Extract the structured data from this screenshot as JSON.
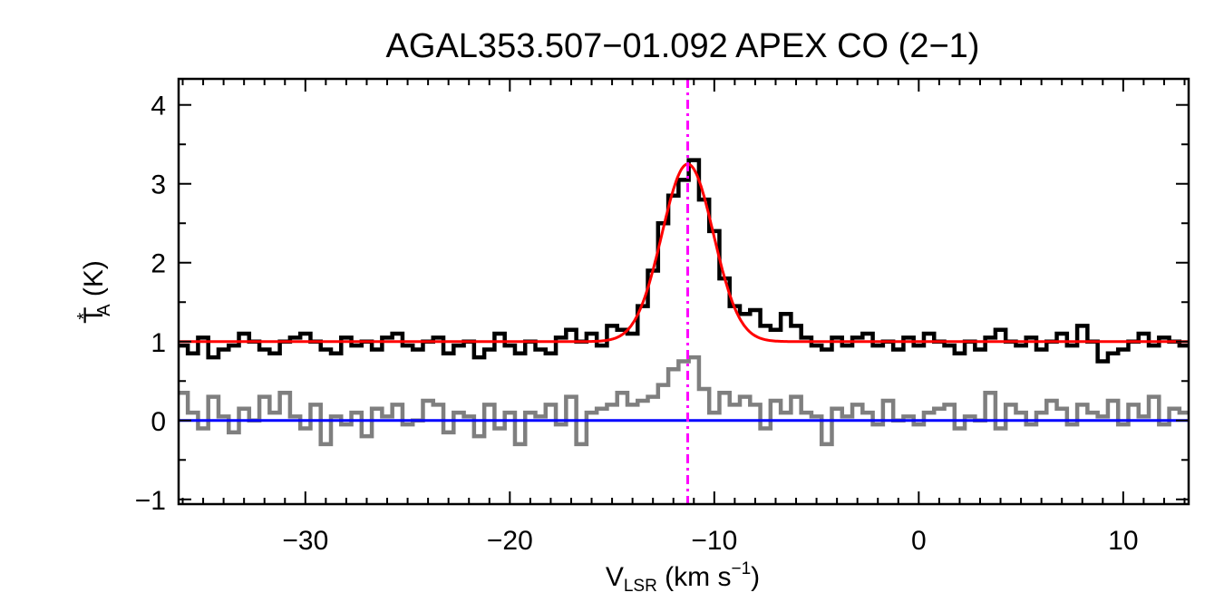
{
  "chart_data": {
    "type": "line",
    "title": "AGAL353.507−01.092  APEX CO (2−1)",
    "xlabel": {
      "main": "V",
      "sub": "LSR",
      "rest": " (km s",
      "sup": "−1",
      "end": ")"
    },
    "ylabel": {
      "main": "T",
      "sup": "*",
      "sub": "A",
      "rest": " (K)"
    },
    "xlim": [
      -36.2,
      13.2
    ],
    "ylim": [
      -1.06,
      4.33
    ],
    "xticks": [
      -30,
      -20,
      -10,
      0,
      10
    ],
    "xtick_labels": [
      "−30",
      "−20",
      "−10",
      "0",
      "10"
    ],
    "yticks": [
      -1,
      0,
      1,
      2,
      3,
      4
    ],
    "ytick_labels": [
      "−1",
      "0",
      "1",
      "2",
      "3",
      "4"
    ],
    "x_minor_step": 1,
    "y_minor_step": 0.5,
    "grid": false,
    "x": [
      -36,
      -35.5,
      -35,
      -34.5,
      -34,
      -33.5,
      -33,
      -32.5,
      -32,
      -31.5,
      -31,
      -30.5,
      -30,
      -29.5,
      -29,
      -28.5,
      -28,
      -27.5,
      -27,
      -26.5,
      -26,
      -25.5,
      -25,
      -24.5,
      -24,
      -23.5,
      -23,
      -22.5,
      -22,
      -21.5,
      -21,
      -20.5,
      -20,
      -19.5,
      -19,
      -18.5,
      -18,
      -17.5,
      -17,
      -16.5,
      -16,
      -15.5,
      -15,
      -14.5,
      -14,
      -13.5,
      -13,
      -12.5,
      -12,
      -11.5,
      -11,
      -10.5,
      -10,
      -9.5,
      -9,
      -8.5,
      -8,
      -7.5,
      -7,
      -6.5,
      -6,
      -5.5,
      -5,
      -4.5,
      -4,
      -3.5,
      -3,
      -2.5,
      -2,
      -1.5,
      -1,
      -0.5,
      0,
      0.5,
      1,
      1.5,
      2,
      2.5,
      3,
      3.5,
      4,
      4.5,
      5,
      5.5,
      6,
      6.5,
      7,
      7.5,
      8,
      8.5,
      9,
      9.5,
      10,
      10.5,
      11,
      11.5,
      12,
      12.5,
      13
    ],
    "series": [
      {
        "color": "#000000",
        "style": "histogram",
        "values": [
          0.95,
          0.85,
          1.05,
          0.8,
          0.9,
          0.95,
          1.1,
          1.0,
          0.9,
          0.85,
          1.0,
          1.05,
          1.1,
          1.0,
          0.9,
          0.85,
          1.05,
          0.95,
          1.0,
          0.9,
          1.05,
          1.1,
          0.95,
          0.9,
          1.0,
          1.05,
          0.85,
          0.95,
          1.0,
          0.8,
          0.9,
          1.1,
          0.95,
          0.85,
          1.0,
          0.9,
          0.85,
          1.05,
          1.15,
          1.0,
          1.1,
          0.95,
          1.2,
          1.15,
          1.1,
          1.45,
          1.9,
          2.5,
          2.85,
          3.05,
          3.3,
          2.8,
          2.4,
          1.8,
          1.45,
          1.35,
          1.4,
          1.2,
          1.15,
          1.35,
          1.2,
          1.05,
          0.95,
          0.9,
          1.05,
          0.95,
          1.05,
          1.1,
          0.95,
          1.0,
          0.9,
          1.05,
          0.95,
          1.1,
          1.0,
          0.95,
          0.85,
          1.0,
          0.9,
          1.05,
          1.15,
          1.0,
          0.95,
          1.05,
          0.9,
          1.0,
          1.1,
          0.95,
          1.2,
          1.0,
          0.75,
          0.85,
          0.9,
          1.0,
          1.1,
          0.95,
          1.05,
          1.0,
          0.95
        ]
      },
      {
        "color": "#7f7f7f",
        "style": "histogram",
        "values": [
          0.35,
          0.1,
          -0.1,
          0.3,
          0.05,
          -0.15,
          0.15,
          0.0,
          0.3,
          0.1,
          0.35,
          0.05,
          -0.1,
          0.2,
          -0.3,
          0.05,
          -0.05,
          0.1,
          -0.2,
          0.15,
          0.05,
          0.2,
          -0.05,
          0.0,
          0.25,
          0.2,
          -0.15,
          0.1,
          0.05,
          -0.2,
          0.2,
          -0.1,
          0.1,
          -0.3,
          0.1,
          0.05,
          0.2,
          -0.05,
          0.3,
          -0.3,
          0.1,
          0.15,
          0.2,
          0.35,
          0.2,
          0.25,
          0.3,
          0.45,
          0.65,
          0.75,
          0.8,
          0.4,
          0.1,
          0.35,
          0.2,
          0.3,
          0.2,
          -0.1,
          0.25,
          0.1,
          0.3,
          0.1,
          0.05,
          -0.3,
          0.15,
          0.05,
          0.2,
          0.1,
          -0.05,
          0.25,
          0.0,
          0.05,
          -0.05,
          0.1,
          0.15,
          0.2,
          -0.1,
          0.05,
          0.0,
          0.35,
          -0.1,
          0.2,
          0.1,
          -0.05,
          0.1,
          0.25,
          0.15,
          -0.05,
          0.2,
          0.1,
          0.05,
          0.25,
          -0.05,
          0.2,
          0.05,
          0.3,
          -0.05,
          0.15,
          0.1
        ]
      }
    ],
    "gaussian_fit": {
      "color": "#ff0000",
      "baseline": 1.0,
      "amplitude": 2.25,
      "center": -11.3,
      "sigma": 1.26
    },
    "zero_line": {
      "color": "#0000ff",
      "y": 0
    },
    "velocity_marker": {
      "color": "#ff00ff",
      "x": -11.3,
      "style": "dash-dot"
    }
  }
}
